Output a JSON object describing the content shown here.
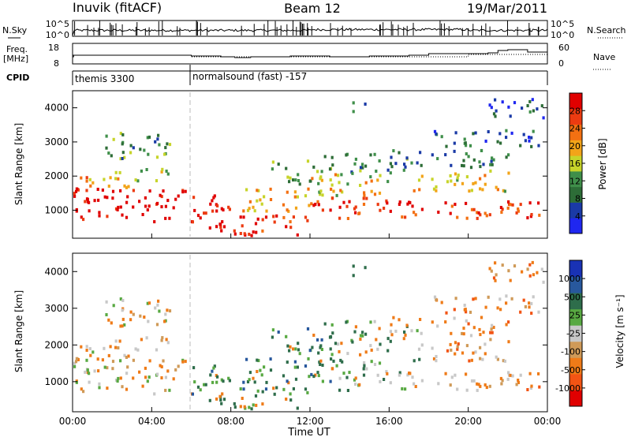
{
  "header": {
    "station": "Inuvik (fitACF)",
    "beam": "Beam 12",
    "date": "19/Mar/2011"
  },
  "panels": {
    "noise": {
      "left_label": "N.Sky",
      "right_label": "N.Search",
      "left_ticks": [
        "10^5",
        "10^0"
      ],
      "right_ticks": [
        "10^5",
        "10^0"
      ]
    },
    "freq": {
      "left_label_1": "Freq.",
      "left_label_2": "[MHz]",
      "right_label": "Nave",
      "left_ticks": [
        "18",
        "8"
      ],
      "right_ticks": [
        "60",
        "0"
      ]
    },
    "cpid": {
      "label": "CPID",
      "modes": [
        "themis 3300",
        "normalsound (fast) -157"
      ]
    }
  },
  "colors": {
    "power_scale": [
      "#1f27f0",
      "#1a3aa6",
      "#2d6d37",
      "#3f8f4a",
      "#c7d42a",
      "#f2a419",
      "#f37012",
      "#ec3b11",
      "#e00000"
    ],
    "velocity_scale": [
      "#1932b5",
      "#28589d",
      "#2e6d4b",
      "#58a942",
      "#c8c8c8",
      "#cf9a58",
      "#ef7b18",
      "#f25414",
      "#e00000"
    ]
  },
  "chart_data": [
    {
      "type": "heatmap",
      "parameter": "Power",
      "ylabel": "Slant Range [km]",
      "ylim": [
        180,
        4500
      ],
      "yticks": [
        "1000",
        "2000",
        "3000",
        "4000"
      ],
      "xlim_hours": [
        0,
        24
      ],
      "colorbar": {
        "label": "Power [dB]",
        "ticks": [
          "28",
          "24",
          "20",
          "16",
          "12",
          "8",
          "4"
        ]
      }
    },
    {
      "type": "heatmap",
      "parameter": "Velocity",
      "ylabel": "Slant Range [km]",
      "ylim": [
        180,
        4500
      ],
      "yticks": [
        "1000",
        "2000",
        "3000",
        "4000"
      ],
      "xlim_hours": [
        0,
        24
      ],
      "xlabel": "Time UT",
      "xticks": [
        "00:00",
        "04:00",
        "08:00",
        "12:00",
        "16:00",
        "20:00",
        "00:00"
      ],
      "colorbar": {
        "label": "Velocity [m s⁻¹]",
        "ticks": [
          "1000",
          "500",
          "25",
          "-25",
          "-100",
          "-500",
          "-1000"
        ]
      }
    }
  ],
  "scatter_bands": [
    {
      "t0": 0.0,
      "t1": 5.7,
      "r0": 700,
      "r1": 1700,
      "lvl": 8.2
    },
    {
      "t0": 0.2,
      "t1": 3.0,
      "r0": 1700,
      "r1": 2200,
      "lvl": 5.2
    },
    {
      "t0": 3.0,
      "t1": 5.0,
      "r0": 1900,
      "r1": 2300,
      "lvl": 4.2
    },
    {
      "t0": 1.5,
      "t1": 5.0,
      "r0": 2500,
      "r1": 3300,
      "lvl": 2.8
    },
    {
      "t0": 5.9,
      "t1": 8.0,
      "r0": 500,
      "r1": 1500,
      "lvl": 7.4
    },
    {
      "t0": 7.0,
      "t1": 12.0,
      "r0": 300,
      "r1": 900,
      "lvl": 7.6
    },
    {
      "t0": 8.5,
      "t1": 12.0,
      "r0": 1000,
      "r1": 1700,
      "lvl": 5.0
    },
    {
      "t0": 10.0,
      "t1": 12.5,
      "r0": 1800,
      "r1": 2500,
      "lvl": 3.0
    },
    {
      "t0": 12.0,
      "t1": 17.5,
      "r0": 800,
      "r1": 1400,
      "lvl": 7.2
    },
    {
      "t0": 12.0,
      "t1": 16.0,
      "r0": 1400,
      "r1": 2100,
      "lvl": 4.8
    },
    {
      "t0": 12.5,
      "t1": 17.0,
      "r0": 2100,
      "r1": 2700,
      "lvl": 2.2
    },
    {
      "t0": 17.0,
      "t1": 23.9,
      "r0": 800,
      "r1": 1300,
      "lvl": 7.0
    },
    {
      "t0": 17.0,
      "t1": 22.0,
      "r0": 1600,
      "r1": 2200,
      "lvl": 4.6
    },
    {
      "t0": 16.0,
      "t1": 22.0,
      "r0": 2300,
      "r1": 2800,
      "lvl": 2.0
    },
    {
      "t0": 18.0,
      "t1": 23.5,
      "r0": 2900,
      "r1": 3400,
      "lvl": 1.6
    },
    {
      "t0": 21.0,
      "t1": 23.8,
      "r0": 3700,
      "r1": 4300,
      "lvl": 1.2
    },
    {
      "t0": 14.0,
      "t1": 15.0,
      "r0": 3900,
      "r1": 4200,
      "lvl": 1.4
    }
  ]
}
